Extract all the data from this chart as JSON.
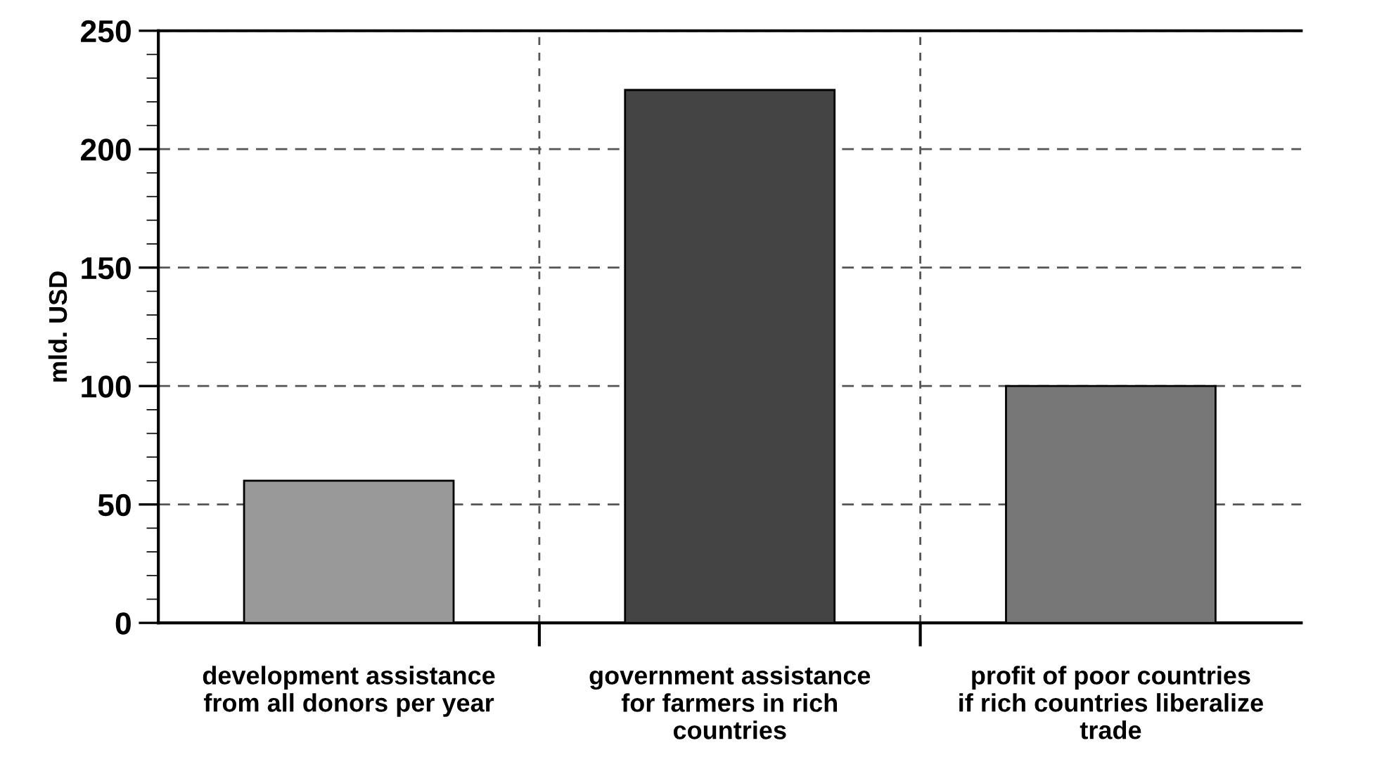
{
  "chart_data": {
    "type": "bar",
    "categories": [
      "development assistance\nfrom all donors per year",
      "government assistance\nfor farmers in rich\ncountries",
      "profit of poor countries\nif rich countries liberalize\ntrade"
    ],
    "values": [
      60,
      225,
      100
    ],
    "colors": [
      "#999999",
      "#444444",
      "#777777"
    ],
    "ylabel": "mld. USD",
    "ylim": [
      0,
      250
    ],
    "yticks": [
      0,
      50,
      100,
      150,
      200,
      250
    ],
    "grid": true
  }
}
